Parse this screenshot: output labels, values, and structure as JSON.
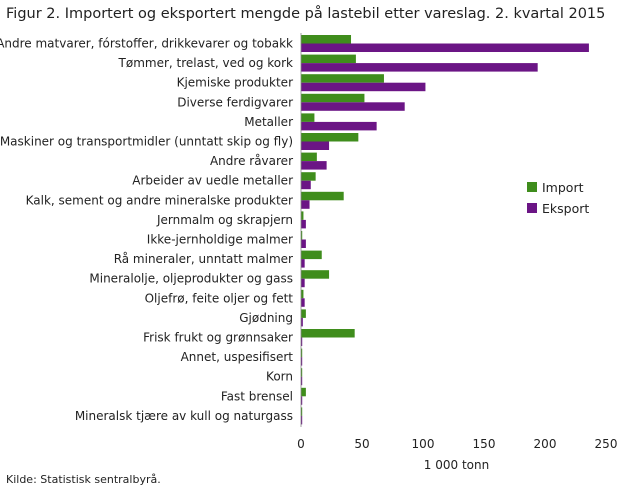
{
  "title": "Figur 2. Importert og eksportert mengde på lastebil etter vareslag. 2. kvartal 2015",
  "source": "Kilde: Statistisk sentralbyrå.",
  "colors": {
    "import": "#3f8d1c",
    "eksport": "#6b1585"
  },
  "chart_data": {
    "type": "bar",
    "orientation": "horizontal",
    "categories": [
      "Andre matvarer, fórstoffer, drikkevarer og tobakk",
      "Tømmer, trelast, ved og kork",
      "Kjemiske produkter",
      "Diverse ferdigvarer",
      "Metaller",
      "Maskiner og transportmidler (unntatt skip og fly)",
      "Andre råvarer",
      "Arbeider av uedle metaller",
      "Kalk, sement og andre mineralske produkter",
      "Jernmalm og skrapjern",
      "Ikke-jernholdige malmer",
      "Rå mineraler, unntatt malmer",
      "Mineralolje, oljeprodukter og gass",
      "Oljefrø, feite oljer og fett",
      "Gjødning",
      "Frisk frukt og grønnsaker",
      "Annet, uspesifisert",
      "Korn",
      "Fast brensel",
      "Mineralsk tjære av kull og naturgass"
    ],
    "series": [
      {
        "name": "Import",
        "values": [
          41,
          45,
          68,
          52,
          11,
          47,
          13,
          12,
          35,
          2,
          1,
          17,
          23,
          2,
          4,
          44,
          0.5,
          0.5,
          4,
          0.3
        ]
      },
      {
        "name": "Eksport",
        "values": [
          236,
          194,
          102,
          85,
          62,
          23,
          21,
          8,
          7,
          4,
          4,
          3,
          3,
          3,
          1.5,
          1,
          0.8,
          0.5,
          1,
          0.3
        ]
      }
    ],
    "xlabel": "1 000 tonn",
    "xlim": [
      0,
      250
    ],
    "xticks": [
      0,
      50,
      100,
      150,
      200,
      250
    ],
    "grid": false,
    "legend": "right"
  }
}
